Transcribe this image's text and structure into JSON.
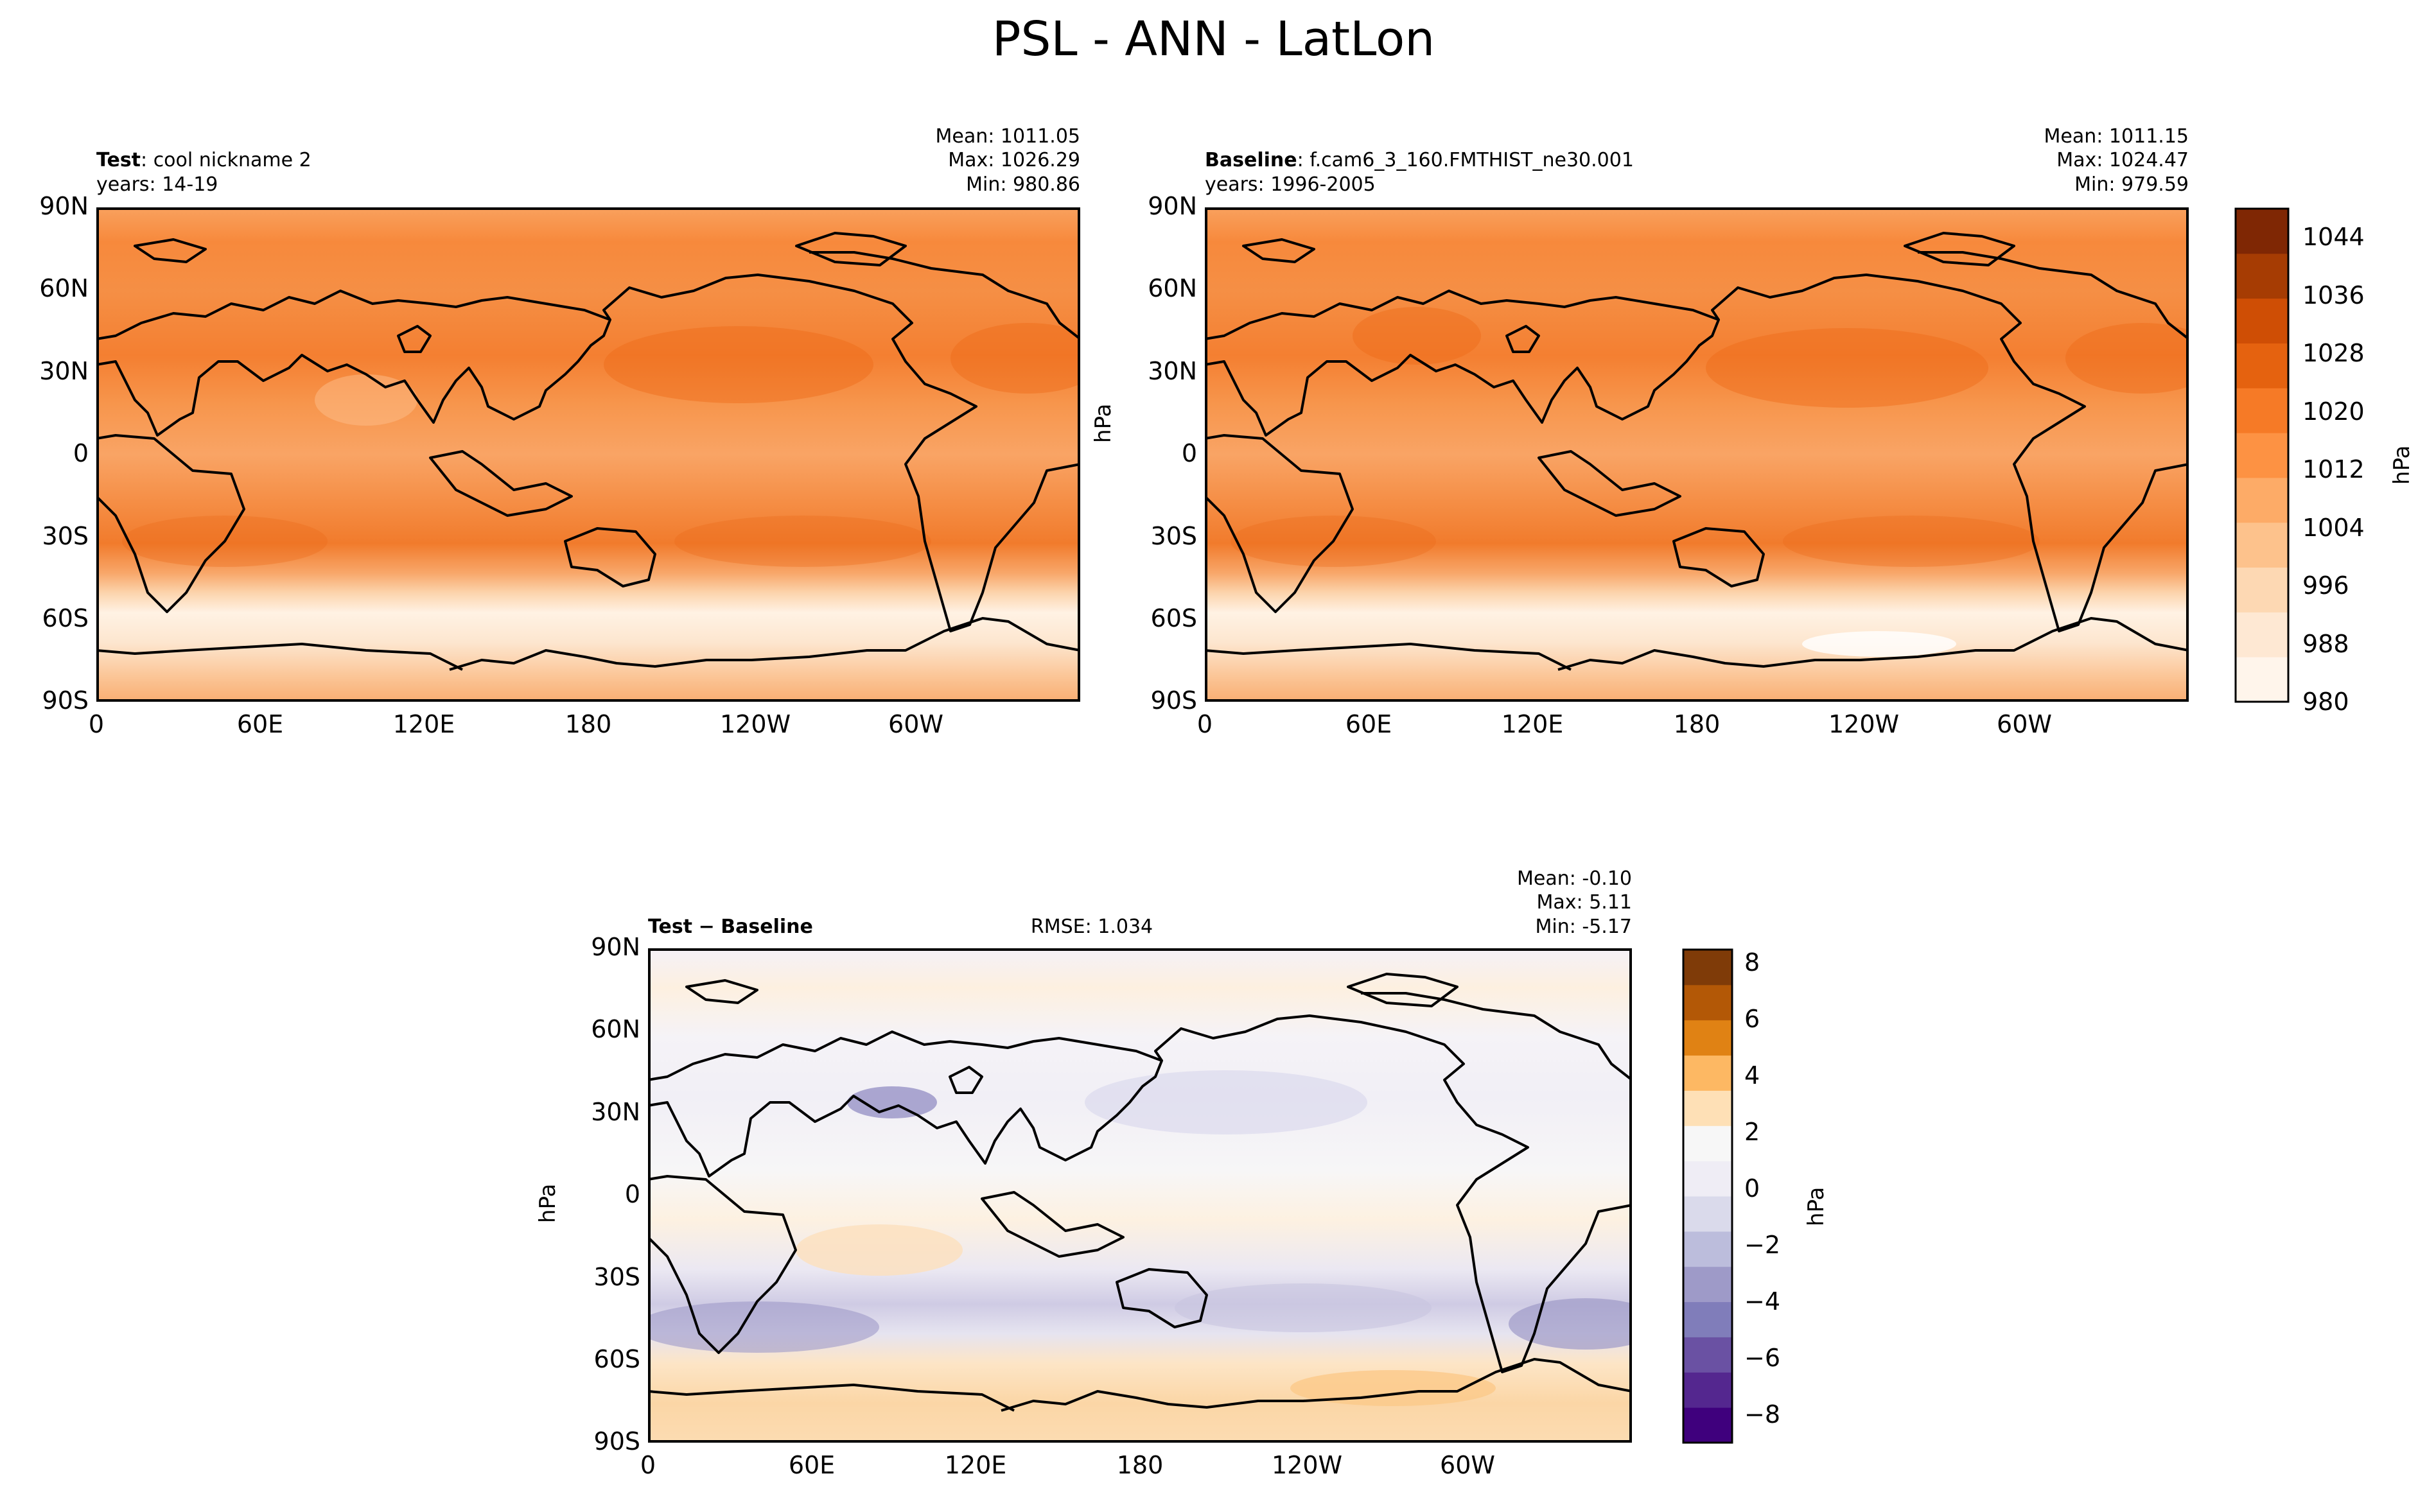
{
  "figure": {
    "title": "PSL - ANN - LatLon"
  },
  "chart_data": [
    {
      "type": "heatmap",
      "id": "test",
      "label_bold": "Test",
      "label_sep": ": ",
      "label_text": "cool nickname 2",
      "years": "years: 14-19",
      "stats": {
        "mean": "Mean: 1011.05",
        "max": "Max: 1026.29",
        "min": "Min: 980.86"
      },
      "x_ticks": [
        "0",
        "60E",
        "120E",
        "180",
        "120W",
        "60W"
      ],
      "y_ticks": [
        "90N",
        "60N",
        "30N",
        "0",
        "30S",
        "60S",
        "90S"
      ],
      "xlim": [
        0,
        360
      ],
      "ylim": [
        -90,
        90
      ],
      "field_mean": 1011.05,
      "field_max": 1026.29,
      "field_min": 980.86
    },
    {
      "type": "heatmap",
      "id": "baseline",
      "label_bold": "Baseline",
      "label_sep": ": ",
      "label_text": "f.cam6_3_160.FMTHIST_ne30.001",
      "years": "years: 1996-2005",
      "stats": {
        "mean": "Mean: 1011.15",
        "max": "Max: 1024.47",
        "min": "Min: 979.59"
      },
      "x_ticks": [
        "0",
        "60E",
        "120E",
        "180",
        "120W",
        "60W"
      ],
      "y_ticks": [
        "90N",
        "60N",
        "30N",
        "0",
        "30S",
        "60S",
        "90S"
      ],
      "ylabel": "hPa",
      "xlim": [
        0,
        360
      ],
      "ylim": [
        -90,
        90
      ],
      "field_mean": 1011.15,
      "field_max": 1024.47,
      "field_min": 979.59,
      "colorbar": {
        "label": "hPa",
        "ticks": [
          "980",
          "988",
          "996",
          "1004",
          "1012",
          "1020",
          "1028",
          "1036",
          "1044"
        ],
        "range": [
          980,
          1048
        ],
        "colors": [
          "#fff5eb",
          "#fee8d3",
          "#fdd8b3",
          "#fdc28c",
          "#fdab67",
          "#fd9243",
          "#f67a26",
          "#e5620f",
          "#cf4e05",
          "#a63c03",
          "#7f2704"
        ]
      }
    },
    {
      "type": "heatmap",
      "id": "diff",
      "label_bold": "Test",
      "label_minus": "−",
      "label_bold2": "Baseline",
      "rmse": "RMSE: 1.034",
      "stats": {
        "mean": "Mean: -0.10",
        "max": "Max:  5.11",
        "min": "Min: -5.17"
      },
      "x_ticks": [
        "0",
        "60E",
        "120E",
        "180",
        "120W",
        "60W"
      ],
      "y_ticks": [
        "90N",
        "60N",
        "30N",
        "0",
        "30S",
        "60S",
        "90S"
      ],
      "ylabel": "hPa",
      "xlim": [
        0,
        360
      ],
      "ylim": [
        -90,
        90
      ],
      "field_mean": -0.1,
      "field_max": 5.11,
      "field_min": -5.17,
      "colorbar": {
        "label": "hPa",
        "ticks": [
          "8",
          "6",
          "4",
          "2",
          "0",
          "−2",
          "−4",
          "−6",
          "−8"
        ],
        "range": [
          -9,
          8.5
        ],
        "colors": [
          "#3f007d",
          "#54278f",
          "#6a51a3",
          "#807dba",
          "#9e9ac8",
          "#bcbddc",
          "#dadaeb",
          "#efedf5",
          "#f7f7f7",
          "#fee0b6",
          "#fdb863",
          "#e08214",
          "#b35806",
          "#7f3b08"
        ]
      }
    }
  ]
}
